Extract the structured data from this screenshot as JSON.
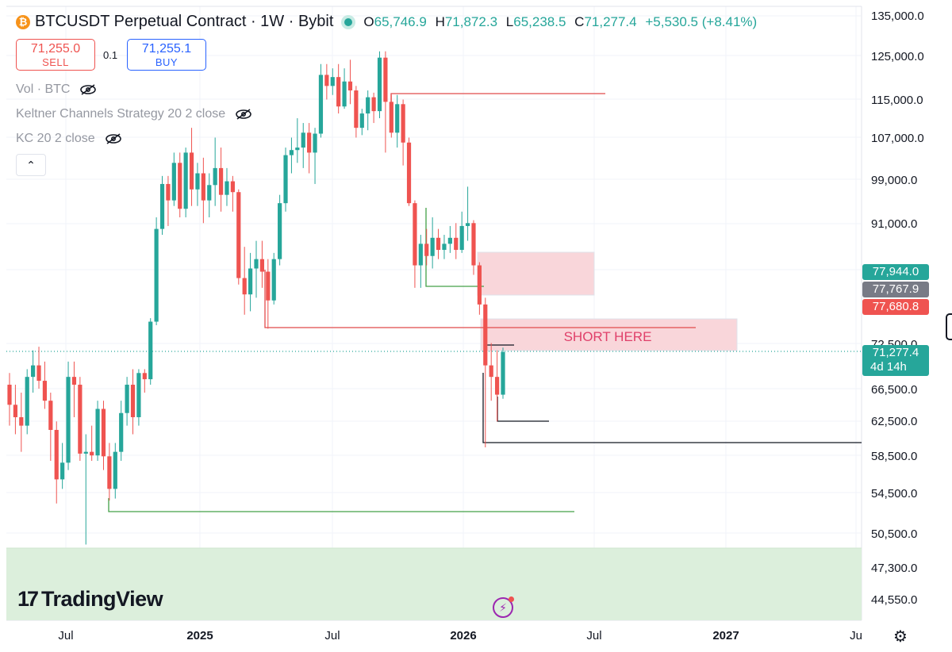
{
  "header": {
    "coin_glyph": "₿",
    "title": "BTCUSDT Perpetual Contract · 1W · Bybit",
    "ohlc": [
      {
        "k": "O",
        "v": "65,746.9"
      },
      {
        "k": "H",
        "v": "71,872.3"
      },
      {
        "k": "L",
        "v": "65,238.5"
      },
      {
        "k": "C",
        "v": "71,277.4"
      }
    ],
    "change": "+5,530.5 (+8.41%)"
  },
  "trade": {
    "sell_price": "71,255.0",
    "sell_label": "SELL",
    "spread": "0.1",
    "buy_price": "71,255.1",
    "buy_label": "BUY"
  },
  "legend": {
    "vol": "Vol · BTC",
    "keltner_strategy": "Keltner Channels Strategy 20 2 close",
    "kc": "KC 20 2 close",
    "collapse_glyph": "⌃"
  },
  "branding": {
    "logo_text": "TradingView",
    "logo_mark": "17"
  },
  "price_tags": [
    {
      "text": "77,944.0",
      "color": "#26a69a"
    },
    {
      "text": "77,767.9",
      "color": "#787b86"
    },
    {
      "text": "77,680.8",
      "color": "#ef5350"
    },
    {
      "text": "71,277.4",
      "sub": "4d 14h",
      "color": "#26a69a"
    }
  ],
  "colors": {
    "up": "#26a69a",
    "down": "#ef5350",
    "zone": "#f9d6da",
    "demand": "#dcefdc"
  },
  "chart_data": {
    "type": "candlestick",
    "y_axis_ticks": [
      "135,000.0",
      "125,000.0",
      "115,000.0",
      "107,000.0",
      "99,000.0",
      "91,000.0",
      "72,500.0",
      "66,500.0",
      "62,500.0",
      "58,500.0",
      "54,500.0",
      "50,500.0",
      "47,300.0",
      "44,550.0"
    ],
    "x_axis_ticks": [
      "Jul",
      "2025",
      "Jul",
      "2026",
      "Jul",
      "2027",
      "Ju"
    ],
    "y_scale": "log",
    "annotations": [
      {
        "type": "text",
        "text": "SHORT HERE"
      }
    ],
    "candles": [
      {
        "o": 67000,
        "h": 68500,
        "l": 62000,
        "c": 64500
      },
      {
        "o": 64500,
        "h": 67000,
        "l": 61000,
        "c": 63000
      },
      {
        "o": 63000,
        "h": 66000,
        "l": 59000,
        "c": 62000
      },
      {
        "o": 62000,
        "h": 69000,
        "l": 61000,
        "c": 68000
      },
      {
        "o": 68000,
        "h": 71500,
        "l": 66000,
        "c": 69500
      },
      {
        "o": 69500,
        "h": 72000,
        "l": 66500,
        "c": 67500
      },
      {
        "o": 67500,
        "h": 70000,
        "l": 64000,
        "c": 65000
      },
      {
        "o": 65000,
        "h": 66000,
        "l": 58000,
        "c": 61500
      },
      {
        "o": 61500,
        "h": 62500,
        "l": 53500,
        "c": 56000
      },
      {
        "o": 56000,
        "h": 60000,
        "l": 55000,
        "c": 57800
      },
      {
        "o": 57800,
        "h": 70000,
        "l": 57000,
        "c": 68000
      },
      {
        "o": 68000,
        "h": 70000,
        "l": 63000,
        "c": 67000
      },
      {
        "o": 67000,
        "h": 68000,
        "l": 58000,
        "c": 58800
      },
      {
        "o": 58800,
        "h": 61000,
        "l": 49500,
        "c": 59000
      },
      {
        "o": 59000,
        "h": 62000,
        "l": 58000,
        "c": 58600
      },
      {
        "o": 58600,
        "h": 65000,
        "l": 58000,
        "c": 64000
      },
      {
        "o": 64000,
        "h": 65000,
        "l": 57000,
        "c": 58500
      },
      {
        "o": 58500,
        "h": 60000,
        "l": 53800,
        "c": 55000
      },
      {
        "o": 55000,
        "h": 60000,
        "l": 54000,
        "c": 59000
      },
      {
        "o": 59000,
        "h": 65000,
        "l": 58000,
        "c": 63500
      },
      {
        "o": 63500,
        "h": 68000,
        "l": 62000,
        "c": 67000
      },
      {
        "o": 67000,
        "h": 69000,
        "l": 61000,
        "c": 63000
      },
      {
        "o": 63000,
        "h": 69000,
        "l": 62000,
        "c": 68500
      },
      {
        "o": 68500,
        "h": 69000,
        "l": 66000,
        "c": 67700
      },
      {
        "o": 67700,
        "h": 76000,
        "l": 67000,
        "c": 75500
      },
      {
        "o": 75500,
        "h": 92000,
        "l": 75000,
        "c": 90000
      },
      {
        "o": 90000,
        "h": 99500,
        "l": 89000,
        "c": 98000
      },
      {
        "o": 98000,
        "h": 99500,
        "l": 90500,
        "c": 95000
      },
      {
        "o": 95000,
        "h": 104000,
        "l": 94000,
        "c": 102000
      },
      {
        "o": 102000,
        "h": 104000,
        "l": 92000,
        "c": 93500
      },
      {
        "o": 93500,
        "h": 105000,
        "l": 92000,
        "c": 104000
      },
      {
        "o": 104000,
        "h": 109000,
        "l": 94000,
        "c": 97000
      },
      {
        "o": 97000,
        "h": 102000,
        "l": 94000,
        "c": 100000
      },
      {
        "o": 100000,
        "h": 103000,
        "l": 91000,
        "c": 95000
      },
      {
        "o": 95000,
        "h": 100000,
        "l": 92000,
        "c": 97800
      },
      {
        "o": 97800,
        "h": 107000,
        "l": 94000,
        "c": 101000
      },
      {
        "o": 101000,
        "h": 105000,
        "l": 93000,
        "c": 96000
      },
      {
        "o": 96000,
        "h": 101000,
        "l": 94000,
        "c": 98500
      },
      {
        "o": 98500,
        "h": 99500,
        "l": 93000,
        "c": 96500
      },
      {
        "o": 96500,
        "h": 97000,
        "l": 81000,
        "c": 82000
      },
      {
        "o": 82000,
        "h": 87000,
        "l": 76500,
        "c": 79500
      },
      {
        "o": 79500,
        "h": 86000,
        "l": 77000,
        "c": 83500
      },
      {
        "o": 83500,
        "h": 88000,
        "l": 79000,
        "c": 85000
      },
      {
        "o": 85000,
        "h": 88000,
        "l": 80500,
        "c": 83000
      },
      {
        "o": 83000,
        "h": 85000,
        "l": 74500,
        "c": 78600
      },
      {
        "o": 78600,
        "h": 86000,
        "l": 78000,
        "c": 85000
      },
      {
        "o": 85000,
        "h": 96000,
        "l": 84000,
        "c": 94500
      },
      {
        "o": 94500,
        "h": 105000,
        "l": 93000,
        "c": 103500
      },
      {
        "o": 103500,
        "h": 107000,
        "l": 100000,
        "c": 104500
      },
      {
        "o": 104500,
        "h": 111000,
        "l": 102000,
        "c": 105000
      },
      {
        "o": 105000,
        "h": 110000,
        "l": 101000,
        "c": 108000
      },
      {
        "o": 108000,
        "h": 110000,
        "l": 100000,
        "c": 104000
      },
      {
        "o": 104000,
        "h": 109000,
        "l": 98000,
        "c": 107800
      },
      {
        "o": 107800,
        "h": 123000,
        "l": 107000,
        "c": 120500
      },
      {
        "o": 120500,
        "h": 123000,
        "l": 115000,
        "c": 118000
      },
      {
        "o": 118000,
        "h": 122000,
        "l": 116000,
        "c": 120000
      },
      {
        "o": 120000,
        "h": 123000,
        "l": 112000,
        "c": 113500
      },
      {
        "o": 113500,
        "h": 122000,
        "l": 113000,
        "c": 119000
      },
      {
        "o": 119000,
        "h": 124000,
        "l": 114000,
        "c": 117000
      },
      {
        "o": 117000,
        "h": 118000,
        "l": 107000,
        "c": 109000
      },
      {
        "o": 109000,
        "h": 113000,
        "l": 107500,
        "c": 112000
      },
      {
        "o": 112000,
        "h": 117000,
        "l": 108500,
        "c": 115500
      },
      {
        "o": 115500,
        "h": 116500,
        "l": 110000,
        "c": 112500
      },
      {
        "o": 112500,
        "h": 126000,
        "l": 111000,
        "c": 124500
      },
      {
        "o": 124500,
        "h": 126000,
        "l": 104000,
        "c": 114500
      },
      {
        "o": 114500,
        "h": 116000,
        "l": 107000,
        "c": 108000
      },
      {
        "o": 108000,
        "h": 116000,
        "l": 105000,
        "c": 114000
      },
      {
        "o": 114000,
        "h": 115000,
        "l": 101500,
        "c": 106000
      },
      {
        "o": 106000,
        "h": 107000,
        "l": 94000,
        "c": 94500
      },
      {
        "o": 94500,
        "h": 95000,
        "l": 80500,
        "c": 84000
      },
      {
        "o": 84000,
        "h": 89000,
        "l": 80500,
        "c": 87500
      },
      {
        "o": 87500,
        "h": 90000,
        "l": 84000,
        "c": 85500
      },
      {
        "o": 85500,
        "h": 92000,
        "l": 83500,
        "c": 88500
      },
      {
        "o": 88500,
        "h": 90000,
        "l": 85000,
        "c": 86500
      },
      {
        "o": 86500,
        "h": 89000,
        "l": 85000,
        "c": 87500
      },
      {
        "o": 87500,
        "h": 90500,
        "l": 86000,
        "c": 88500
      },
      {
        "o": 88500,
        "h": 91000,
        "l": 85000,
        "c": 86500
      },
      {
        "o": 86500,
        "h": 93000,
        "l": 86000,
        "c": 90500
      },
      {
        "o": 90500,
        "h": 97500,
        "l": 88000,
        "c": 91000
      },
      {
        "o": 91000,
        "h": 91500,
        "l": 82500,
        "c": 84000
      },
      {
        "o": 84000,
        "h": 84500,
        "l": 76500,
        "c": 78000
      },
      {
        "o": 78000,
        "h": 79000,
        "l": 59500,
        "c": 69500
      },
      {
        "o": 69500,
        "h": 72500,
        "l": 65000,
        "c": 68000
      },
      {
        "o": 68000,
        "h": 71500,
        "l": 62500,
        "c": 65746.9
      },
      {
        "o": 65746.9,
        "h": 71872.3,
        "l": 65238.5,
        "c": 71277.4
      }
    ]
  }
}
